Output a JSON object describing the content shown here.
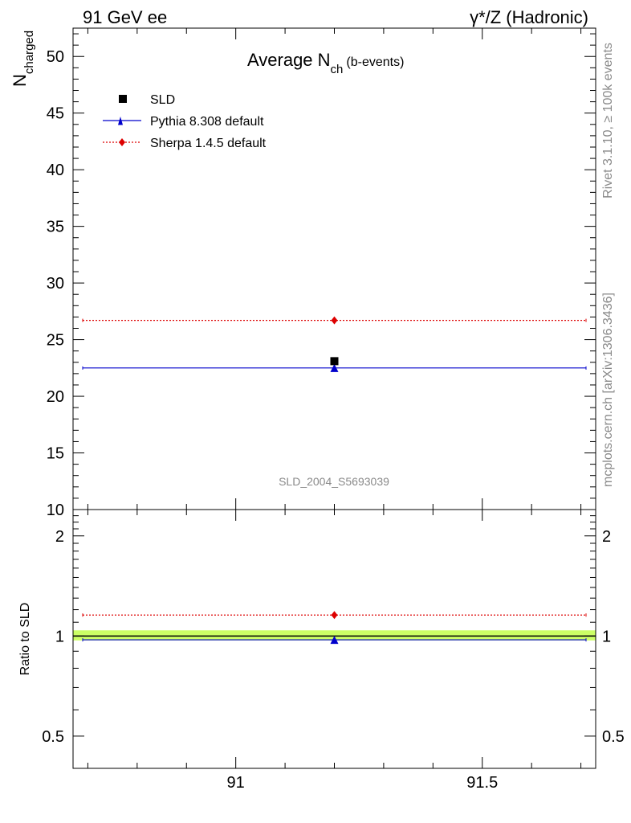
{
  "header": {
    "left": "91 GeV ee",
    "right": "γ*/Z (Hadronic)"
  },
  "side_labels": {
    "rivet": "Rivet 3.1.10, ≥ 100k events",
    "mcplots": "mcplots.cern.ch [arXiv:1306.3436]"
  },
  "chart_data": [
    {
      "type": "scatter",
      "panel": "main",
      "title_main": "Average N",
      "title_sub": "ch",
      "title_suffix": "(b-events)",
      "ylabel_main": "N",
      "ylabel_sub": "charged",
      "xlim": [
        90.67,
        91.73
      ],
      "ylim": [
        10,
        52.5
      ],
      "y_ticks": [
        15,
        20,
        25,
        30,
        35,
        40,
        45,
        50
      ],
      "y_tick_labels": [
        "15",
        "20",
        "25",
        "30",
        "35",
        "40",
        "45",
        "50"
      ],
      "y_cut_label": "10",
      "watermark": "SLD_2004_S5693039",
      "legend_position": "top-left",
      "series": [
        {
          "name": "SLD",
          "color": "#000000",
          "marker": "square",
          "x": [
            91.2
          ],
          "y": [
            23.1
          ],
          "line": "none"
        },
        {
          "name": "Pythia 8.308 default",
          "color": "#0000cc",
          "marker": "triangle",
          "x": [
            91.2
          ],
          "y": [
            22.5
          ],
          "line": "solid"
        },
        {
          "name": "Sherpa 1.4.5 default",
          "color": "#dd0000",
          "marker": "diamond",
          "x": [
            91.2
          ],
          "y": [
            26.7
          ],
          "line": "dotted"
        }
      ]
    },
    {
      "type": "scatter",
      "panel": "ratio",
      "ylabel": "Ratio to SLD",
      "xlim": [
        90.67,
        91.73
      ],
      "ylim": [
        0.4,
        2.4
      ],
      "yscale": "log",
      "y_ticks": [
        0.5,
        1,
        2
      ],
      "y_tick_labels": [
        "0.5",
        "1",
        "2"
      ],
      "x_ticks": [
        91,
        91.5
      ],
      "x_tick_labels": [
        "91",
        "91.5"
      ],
      "band": {
        "low": 0.97,
        "high": 1.04,
        "color": "#ccff66"
      },
      "series": [
        {
          "name": "Pythia 8.308 default",
          "color": "#0000cc",
          "marker": "triangle",
          "x": [
            91.2
          ],
          "y": [
            0.974
          ],
          "line": "solid"
        },
        {
          "name": "Sherpa 1.4.5 default",
          "color": "#dd0000",
          "marker": "diamond",
          "x": [
            91.2
          ],
          "y": [
            1.156
          ],
          "line": "dotted"
        }
      ]
    }
  ]
}
